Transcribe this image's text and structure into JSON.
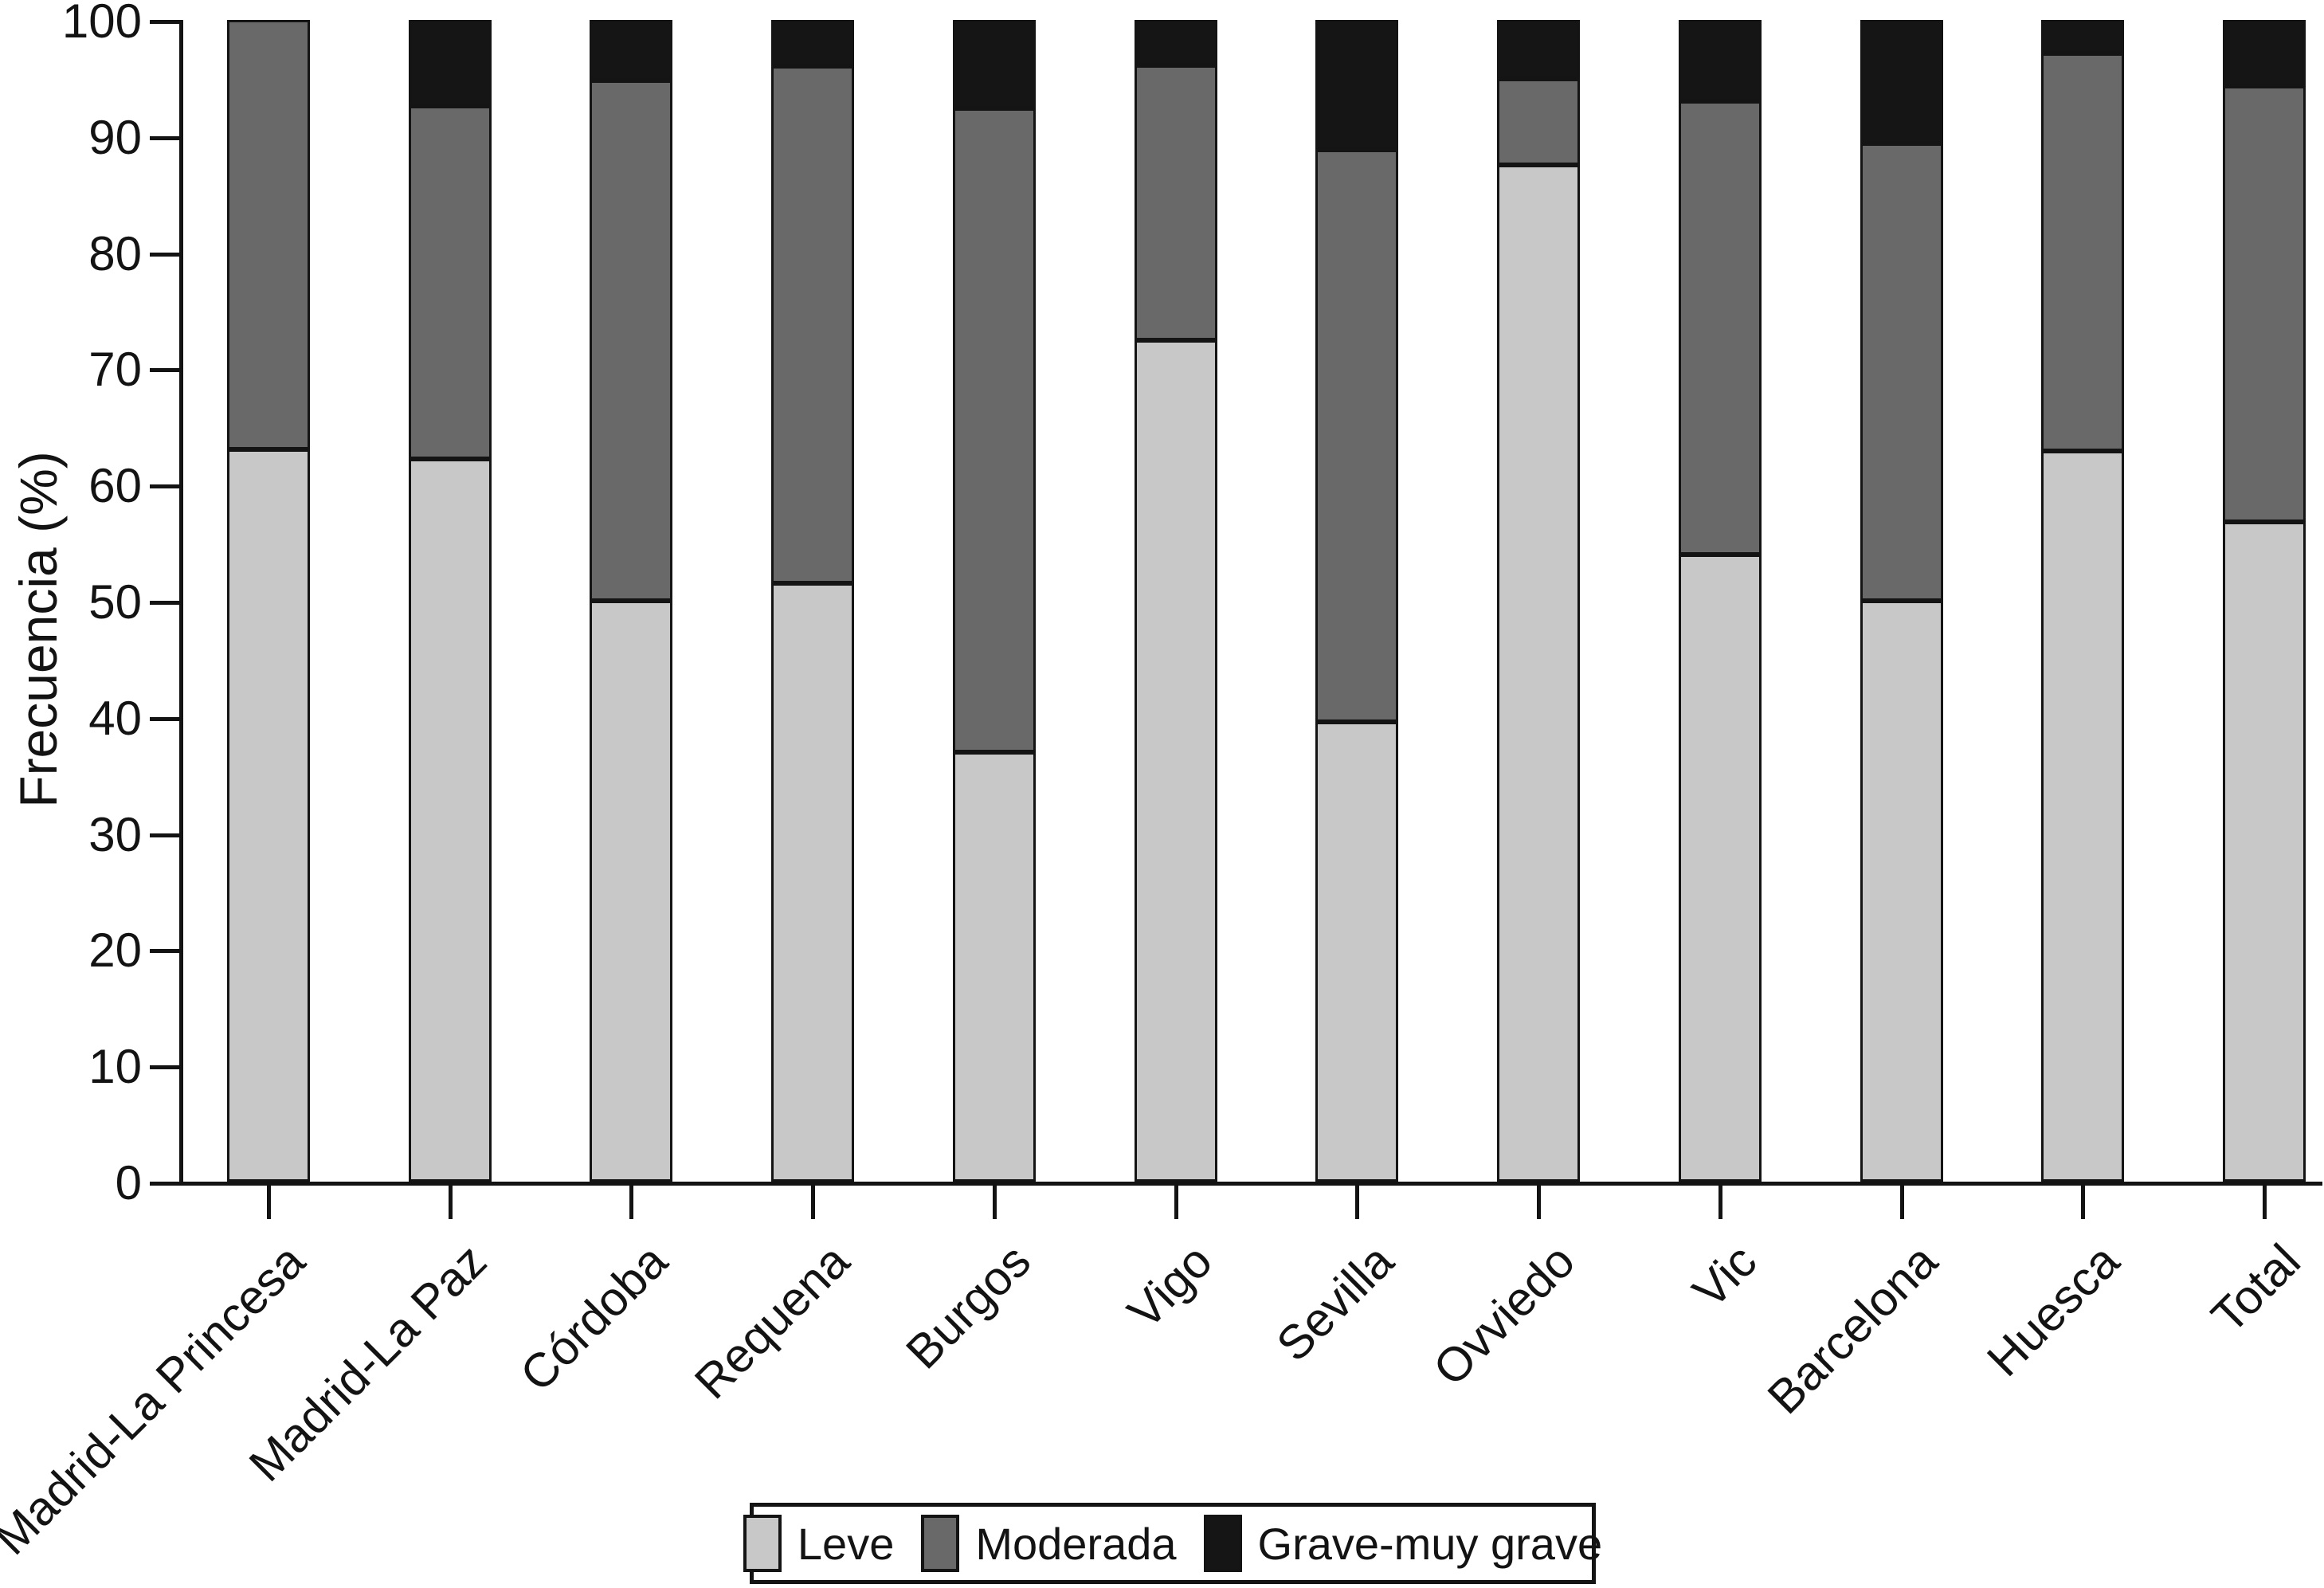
{
  "y_axis": {
    "title": "Frecuencia (%)",
    "ticks": [
      0,
      10,
      20,
      30,
      40,
      50,
      60,
      70,
      80,
      90,
      100
    ],
    "min": 0,
    "max": 100
  },
  "colors": {
    "leve": "#c8c8c8",
    "moderada": "#696969",
    "grave": "#151515",
    "axis": "#131313"
  },
  "legend": {
    "items": [
      {
        "label": "Leve",
        "color": "#c8c8c8"
      },
      {
        "label": "Moderada",
        "color": "#696969"
      },
      {
        "label": "Grave-muy grave",
        "color": "#151515"
      }
    ]
  },
  "chart_data": {
    "type": "bar",
    "stacked": true,
    "title": "",
    "xlabel": "",
    "ylabel": "Frecuencia (%)",
    "ylim": [
      0,
      100
    ],
    "grid": false,
    "legend_position": "bottom-center",
    "categories": [
      "Madrid-La Princesa",
      "Madrid-La Paz",
      "Córdoba",
      "Requena",
      "Burgos",
      "Vigo",
      "Sevilla",
      "Ovviedo",
      "Vic",
      "Barcelona",
      "Huesca",
      "Total"
    ],
    "series": [
      {
        "name": "Leve",
        "color": "#c8c8c8",
        "values": [
          63.0,
          62.2,
          50.0,
          51.5,
          37.0,
          72.4,
          39.6,
          87.5,
          54.0,
          50.0,
          62.9,
          56.8
        ]
      },
      {
        "name": "Moderada",
        "color": "#696969",
        "values": [
          37.0,
          30.4,
          44.8,
          44.5,
          55.4,
          23.7,
          49.2,
          7.4,
          39.0,
          39.4,
          34.2,
          37.5
        ]
      },
      {
        "name": "Grave-muy grave",
        "color": "#151515",
        "values": [
          0.0,
          7.4,
          5.2,
          4.0,
          7.6,
          3.9,
          11.2,
          5.1,
          7.0,
          10.6,
          2.9,
          5.7
        ]
      }
    ]
  }
}
